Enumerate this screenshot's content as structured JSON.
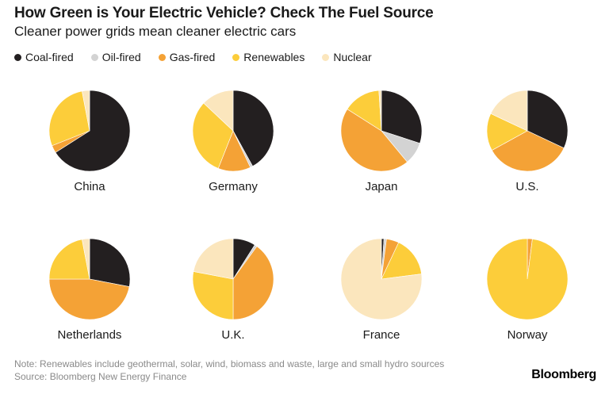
{
  "header": {
    "title": "How Green is Your Electric Vehicle? Check The Fuel Source",
    "subtitle": "Cleaner power grids mean cleaner electric cars"
  },
  "legend": [
    {
      "label": "Coal-fired",
      "color": "#231f20"
    },
    {
      "label": "Oil-fired",
      "color": "#d3d3d3"
    },
    {
      "label": "Gas-fired",
      "color": "#f4a236"
    },
    {
      "label": "Renewables",
      "color": "#fccd3a"
    },
    {
      "label": "Nuclear",
      "color": "#fbe6bd"
    }
  ],
  "chart_data": {
    "type": "pie",
    "series_names": [
      "Coal-fired",
      "Oil-fired",
      "Gas-fired",
      "Renewables",
      "Nuclear"
    ],
    "unit": "percent of power generation",
    "pies": [
      {
        "name": "China",
        "values": [
          66,
          0,
          3,
          28,
          3
        ]
      },
      {
        "name": "Germany",
        "values": [
          42,
          1,
          13,
          31,
          13
        ]
      },
      {
        "name": "Japan",
        "values": [
          30,
          9,
          45,
          15,
          1
        ]
      },
      {
        "name": "U.S.",
        "values": [
          32,
          0,
          35,
          15,
          18
        ]
      },
      {
        "name": "Netherlands",
        "values": [
          28,
          0,
          47,
          22,
          3
        ]
      },
      {
        "name": "U.K.",
        "values": [
          9,
          1,
          40,
          28,
          22
        ]
      },
      {
        "name": "France",
        "values": [
          1,
          1,
          5,
          16,
          77
        ]
      },
      {
        "name": "Norway",
        "values": [
          0,
          0,
          2,
          98,
          0
        ]
      }
    ]
  },
  "footer": {
    "note": "Note: Renewables include geothermal, solar, wind, biomass and waste, large and small hydro sources",
    "source": "Source: Bloomberg New Energy Finance",
    "brand": "Bloomberg"
  }
}
